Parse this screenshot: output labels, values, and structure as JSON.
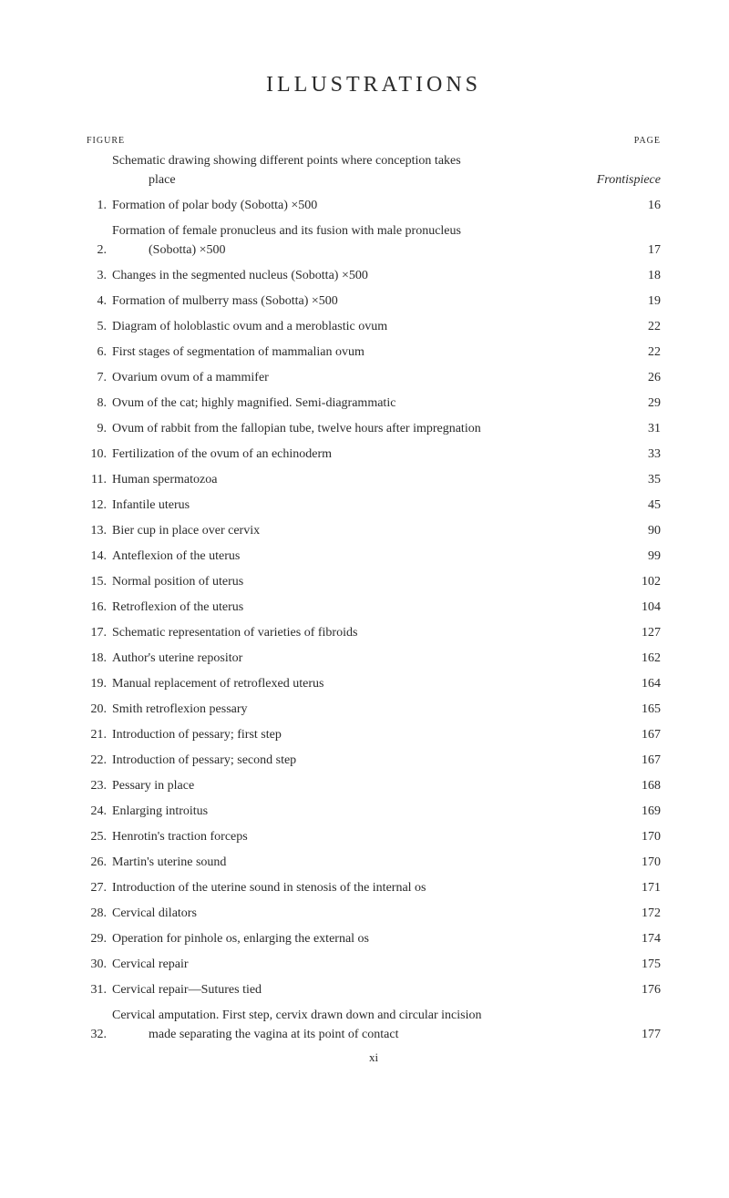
{
  "headers": {
    "figure_label": "FIGURE",
    "page_label": "PAGE"
  },
  "title": "ILLUSTRATIONS",
  "footer_roman": "xi",
  "entries": [
    {
      "num": "",
      "lines": [
        "Schematic drawing showing different points where conception takes",
        "place"
      ],
      "page_ref": "Frontispiece",
      "is_frontis": true
    },
    {
      "num": "1.",
      "lines": [
        "Formation of polar body (Sobotta) ×500"
      ],
      "page_ref": "16"
    },
    {
      "num": "2.",
      "lines": [
        "Formation of female pronucleus and its fusion with male pronucleus",
        "(Sobotta) ×500"
      ],
      "page_ref": "17"
    },
    {
      "num": "3.",
      "lines": [
        "Changes in the segmented nucleus (Sobotta) ×500"
      ],
      "page_ref": "18"
    },
    {
      "num": "4.",
      "lines": [
        "Formation of mulberry mass (Sobotta) ×500"
      ],
      "page_ref": "19"
    },
    {
      "num": "5.",
      "lines": [
        "Diagram of holoblastic ovum and a meroblastic ovum"
      ],
      "page_ref": "22"
    },
    {
      "num": "6.",
      "lines": [
        "First stages of segmentation of mammalian ovum"
      ],
      "page_ref": "22"
    },
    {
      "num": "7.",
      "lines": [
        "Ovarium ovum of a mammifer"
      ],
      "page_ref": "26"
    },
    {
      "num": "8.",
      "lines": [
        "Ovum of the cat; highly magnified.  Semi-diagrammatic"
      ],
      "page_ref": "29"
    },
    {
      "num": "9.",
      "lines": [
        "Ovum of rabbit from the fallopian tube, twelve hours after impregnation"
      ],
      "page_ref": "31"
    },
    {
      "num": "10.",
      "lines": [
        "Fertilization of the ovum of an echinoderm"
      ],
      "page_ref": "33"
    },
    {
      "num": "11.",
      "lines": [
        "Human spermatozoa"
      ],
      "page_ref": "35"
    },
    {
      "num": "12.",
      "lines": [
        "Infantile uterus"
      ],
      "page_ref": "45"
    },
    {
      "num": "13.",
      "lines": [
        "Bier cup in place over cervix"
      ],
      "page_ref": "90"
    },
    {
      "num": "14.",
      "lines": [
        "Anteflexion of the uterus"
      ],
      "page_ref": "99"
    },
    {
      "num": "15.",
      "lines": [
        "Normal position of uterus"
      ],
      "page_ref": "102"
    },
    {
      "num": "16.",
      "lines": [
        "Retroflexion of the uterus"
      ],
      "page_ref": "104"
    },
    {
      "num": "17.",
      "lines": [
        "Schematic representation of varieties of fibroids"
      ],
      "page_ref": "127"
    },
    {
      "num": "18.",
      "lines": [
        "Author's uterine repositor"
      ],
      "page_ref": "162"
    },
    {
      "num": "19.",
      "lines": [
        "Manual replacement of retroflexed uterus"
      ],
      "page_ref": "164"
    },
    {
      "num": "20.",
      "lines": [
        "Smith retroflexion pessary"
      ],
      "page_ref": "165"
    },
    {
      "num": "21.",
      "lines": [
        "Introduction of pessary; first step"
      ],
      "page_ref": "167"
    },
    {
      "num": "22.",
      "lines": [
        "Introduction of pessary; second step"
      ],
      "page_ref": "167"
    },
    {
      "num": "23.",
      "lines": [
        "Pessary in place"
      ],
      "page_ref": "168"
    },
    {
      "num": "24.",
      "lines": [
        "Enlarging introitus"
      ],
      "page_ref": "169"
    },
    {
      "num": "25.",
      "lines": [
        "Henrotin's traction forceps"
      ],
      "page_ref": "170"
    },
    {
      "num": "26.",
      "lines": [
        "Martin's uterine sound"
      ],
      "page_ref": "170"
    },
    {
      "num": "27.",
      "lines": [
        "Introduction of the uterine sound in stenosis of the internal os"
      ],
      "page_ref": "171"
    },
    {
      "num": "28.",
      "lines": [
        "Cervical dilators"
      ],
      "page_ref": "172"
    },
    {
      "num": "29.",
      "lines": [
        "Operation for pinhole os, enlarging the external os"
      ],
      "page_ref": "174"
    },
    {
      "num": "30.",
      "lines": [
        "Cervical repair"
      ],
      "page_ref": "175"
    },
    {
      "num": "31.",
      "lines": [
        "Cervical repair—Sutures tied"
      ],
      "page_ref": "176"
    },
    {
      "num": "32.",
      "lines": [
        "Cervical amputation.  First step, cervix drawn down and circular incision",
        "made separating the vagina at its point of contact"
      ],
      "page_ref": "177"
    }
  ]
}
